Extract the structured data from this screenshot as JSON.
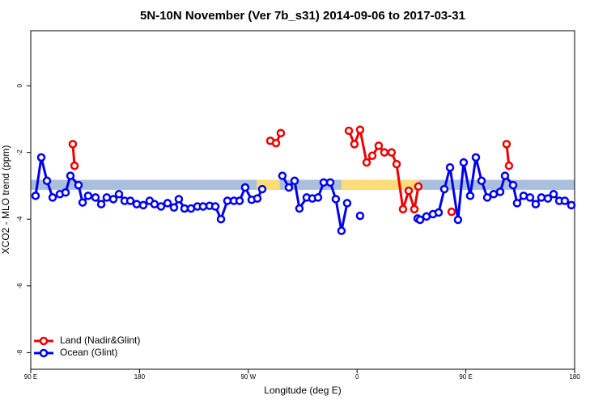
{
  "chart_data": {
    "type": "line",
    "title": "5N-10N November (Ver 7b_s31)   2014-09-06 to 2017-03-31",
    "x_label": "Longitude (deg E)",
    "y_label": "XCO2 - MLO trend (ppm)",
    "xlim": [
      90,
      540
    ],
    "ylim": [
      -8.5,
      1.65
    ],
    "xticks": [
      {
        "value": 90,
        "label": "90 E"
      },
      180,
      {
        "value": 270,
        "label": "90 W"
      },
      {
        "value": 360,
        "label": "0"
      },
      {
        "value": 450,
        "label": "90 E"
      },
      {
        "value": 540,
        "label": "180"
      }
    ],
    "yticks": [
      0,
      -2,
      -4,
      -6,
      -8
    ],
    "legend": "bottom-left",
    "bands": [
      {
        "color": "#aabfdd",
        "x": [
          90,
          540
        ],
        "y": [
          -3.12,
          -2.82
        ]
      },
      {
        "color": "#fedc7a",
        "x": [
          277,
          296
        ],
        "y": [
          -3.12,
          -2.82
        ]
      },
      {
        "color": "#fedc7a",
        "x": [
          347,
          411
        ],
        "y": [
          -3.12,
          -2.82
        ]
      }
    ],
    "series": [
      {
        "name": "Ocean (Glint)",
        "color": "#0000ee",
        "x": [
          94.0,
          98.7,
          103.4,
          108.1,
          114.1,
          118.8,
          122.8,
          129.5,
          132.9,
          137.5,
          143.6,
          148.3,
          152.9,
          158.3,
          163.0,
          167.7,
          172.4,
          177.7,
          183.1,
          188.4,
          192.4,
          197.8,
          203.2,
          208.5,
          212.5,
          217.2,
          222.6,
          227.9,
          232.6,
          238.0,
          242.7,
          247.4,
          252.7,
          258.1,
          262.8,
          267.4,
          272.8,
          277.5,
          281.5,
          null,
          298.2,
          303.6,
          308.3,
          312.3,
          318.3,
          323.0,
          327.7,
          332.4,
          337.8,
          342.4,
          347.1,
          351.8,
          null,
          362.5,
          null,
          410.1,
          412.1,
          417.4,
          422.8,
          427.5,
          432.2,
          436.9,
          443.5,
          448.2,
          453.6,
          458.3,
          463.0,
          467.7,
          473.0,
          478.4,
          482.4,
          489.1,
          492.4,
          497.8,
          503.1,
          507.8,
          512.5,
          517.9,
          522.6,
          527.3,
          531.9,
          537.3
        ],
        "values": [
          -3.3,
          -2.15,
          -2.85,
          -3.35,
          -3.25,
          -3.2,
          -2.7,
          -2.98,
          -3.5,
          -3.3,
          -3.35,
          -3.55,
          -3.35,
          -3.4,
          -3.25,
          -3.45,
          -3.45,
          -3.55,
          -3.58,
          -3.45,
          -3.55,
          -3.62,
          -3.52,
          -3.65,
          -3.4,
          -3.68,
          -3.68,
          -3.62,
          -3.62,
          -3.6,
          -3.62,
          -4.0,
          -3.45,
          -3.45,
          -3.45,
          -3.05,
          -3.42,
          -3.38,
          -3.1,
          null,
          -2.7,
          -3.05,
          -2.85,
          -3.68,
          -3.35,
          -3.38,
          -3.35,
          -2.9,
          -2.9,
          -3.4,
          -4.35,
          -3.52,
          null,
          -3.9,
          null,
          -3.98,
          -4.02,
          -3.92,
          -3.85,
          -3.8,
          -3.1,
          -2.45,
          -4.02,
          -2.3,
          -3.3,
          -2.15,
          -2.85,
          -3.35,
          -3.25,
          -3.18,
          -2.7,
          -2.98,
          -3.52,
          -3.3,
          -3.35,
          -3.55,
          -3.35,
          -3.38,
          -3.25,
          -3.45,
          -3.45,
          -3.58
        ]
      },
      {
        "name": "Land (Nadir&Glint)",
        "color": "#ee0000",
        "x": [
          124.8,
          126.2,
          null,
          288.2,
          292.9,
          296.9,
          null,
          353.2,
          357.8,
          362.5,
          367.9,
          372.6,
          377.9,
          382.6,
          388.6,
          392.7,
          398.0,
          402.7,
          407.4,
          410.7,
          null,
          438.2,
          null,
          483.7,
          485.7
        ],
        "values": [
          -1.75,
          -2.4,
          null,
          -1.65,
          -1.72,
          -1.42,
          null,
          -1.35,
          -1.75,
          -1.32,
          -2.3,
          -2.1,
          -1.8,
          -2.0,
          -2.0,
          -2.35,
          -3.7,
          -3.15,
          -3.7,
          -3.02,
          null,
          -3.78,
          null,
          -1.75,
          -2.4
        ]
      }
    ]
  }
}
